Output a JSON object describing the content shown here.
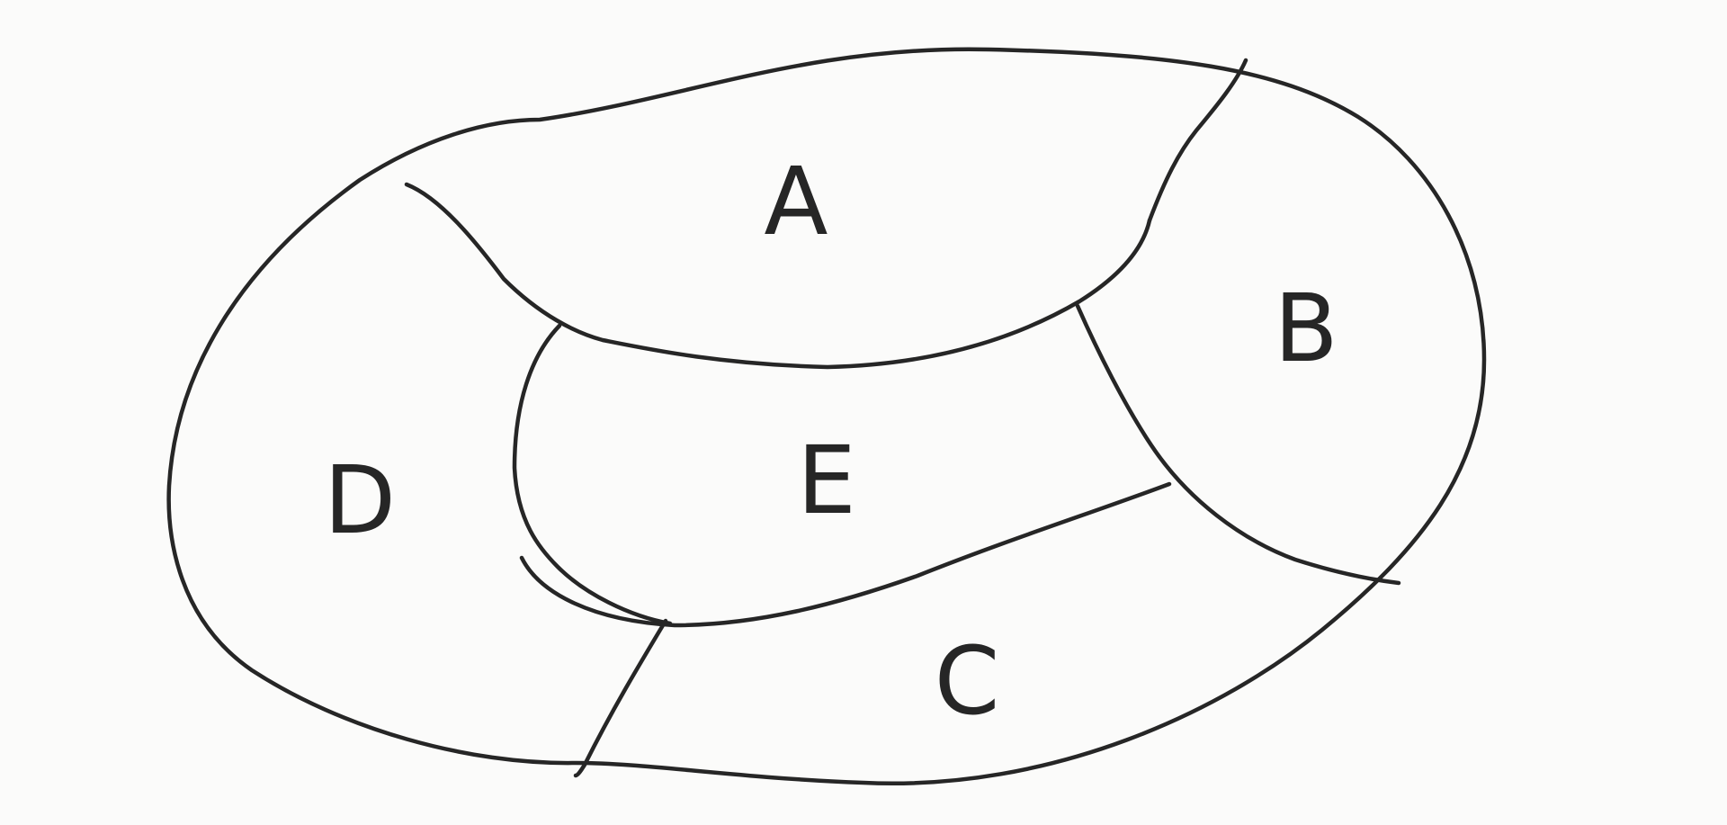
{
  "diagram": {
    "regions": [
      {
        "id": "A",
        "label": "A"
      },
      {
        "id": "B",
        "label": "B"
      },
      {
        "id": "C",
        "label": "C"
      },
      {
        "id": "D",
        "label": "D"
      },
      {
        "id": "E",
        "label": "E"
      }
    ]
  }
}
